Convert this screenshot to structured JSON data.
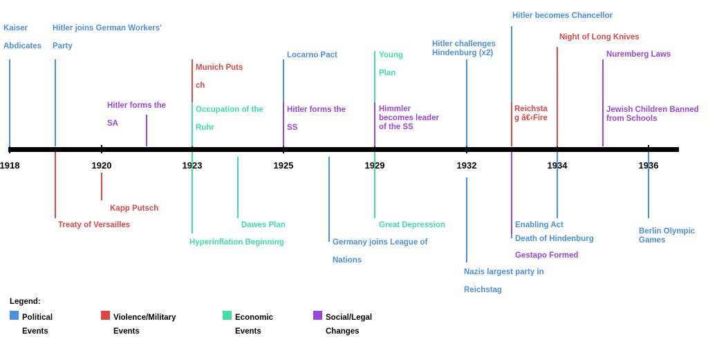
{
  "colors": {
    "political": "#4a90e2",
    "violence": "#e04646",
    "economic": "#3fdfa7",
    "social": "#9b44e0"
  },
  "years": [
    {
      "id": "1918",
      "label": "1918"
    },
    {
      "id": "1920",
      "label": "1920"
    },
    {
      "id": "1923",
      "label": "1923"
    },
    {
      "id": "1925",
      "label": "1925"
    },
    {
      "id": "1929",
      "label": "1929"
    },
    {
      "id": "1932",
      "label": "1932"
    },
    {
      "id": "1934",
      "label": "1934"
    },
    {
      "id": "1936",
      "label": "1936"
    }
  ],
  "events": [
    {
      "id": "kaiser",
      "category": "political",
      "text": "Kaiser\n\nAbdicates"
    },
    {
      "id": "hitler-joins-dap",
      "category": "political",
      "text": "Hitler joins German Workers'\n\nParty"
    },
    {
      "id": "hitler-forms-sa",
      "category": "social",
      "text": "Hitler forms the\n\nSA"
    },
    {
      "id": "munich-putsch",
      "category": "violence",
      "text": "Munich Puts\n\nch"
    },
    {
      "id": "occupation-ruhr",
      "category": "economic",
      "text": "Occupation of the\n\nRuhr"
    },
    {
      "id": "locarno",
      "category": "political",
      "text": "Locarno Pact"
    },
    {
      "id": "hitler-forms-ss",
      "category": "social",
      "text": "Hitler forms the\n\nSS"
    },
    {
      "id": "young-plan",
      "category": "economic",
      "text": "Young\n\nPlan"
    },
    {
      "id": "himmler",
      "category": "social",
      "text": "Himmler\nbecomes leader\nof the SS"
    },
    {
      "id": "hindenburg-challenge",
      "category": "political",
      "text": "Hitler challenges\nHindenburg (x2)"
    },
    {
      "id": "chancellor",
      "category": "political",
      "text": "Hitler becomes Chancellor"
    },
    {
      "id": "reichstag-fire",
      "category": "violence",
      "text": "Reichsta\ng â€‹Fire"
    },
    {
      "id": "long-knives",
      "category": "violence",
      "text": "Night of Long Knives"
    },
    {
      "id": "nuremberg",
      "category": "social",
      "text": "Nuremberg Laws"
    },
    {
      "id": "jewish-children",
      "category": "social",
      "text": "Jewish Children Banned\nfrom Schools"
    },
    {
      "id": "versailles",
      "category": "violence",
      "text": "Treaty of Versailles"
    },
    {
      "id": "kapp",
      "category": "violence",
      "text": "Kapp Putsch"
    },
    {
      "id": "hyperinflation",
      "category": "economic",
      "text": "Hyperinflation Beginning"
    },
    {
      "id": "dawes",
      "category": "economic",
      "text": "Dawes Plan"
    },
    {
      "id": "league",
      "category": "political",
      "text": "Germany joins League of\n\nNations"
    },
    {
      "id": "depression",
      "category": "economic",
      "text": "Great Depression"
    },
    {
      "id": "nazis-largest",
      "category": "political",
      "text": "Nazis largest party in\n\nReichstag"
    },
    {
      "id": "enabling-act",
      "category": "political",
      "text": "Enabling Act"
    },
    {
      "id": "death-hindenburg",
      "category": "political",
      "text": "Death of Hindenburg"
    },
    {
      "id": "gestapo",
      "category": "social",
      "text": "Gestapo Formed"
    },
    {
      "id": "olympics",
      "category": "political",
      "text": "Berlin Olympic\nGames"
    }
  ],
  "legend": {
    "title": "Legend:",
    "items": [
      {
        "category": "political",
        "text": "Political\nEvents"
      },
      {
        "category": "violence",
        "text": "Violence/Military\nEvents"
      },
      {
        "category": "economic",
        "text": "Economic\nEvents"
      },
      {
        "category": "social",
        "text": "Social/Legal\nChanges"
      }
    ]
  }
}
